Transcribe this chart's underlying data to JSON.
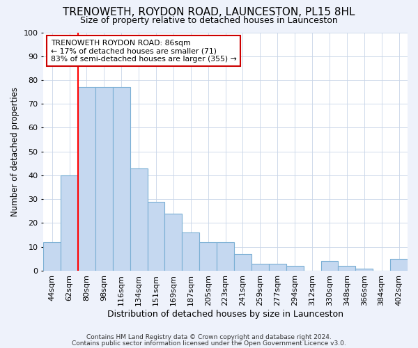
{
  "title": "TRENOWETH, ROYDON ROAD, LAUNCESTON, PL15 8HL",
  "subtitle": "Size of property relative to detached houses in Launceston",
  "xlabel": "Distribution of detached houses by size in Launceston",
  "ylabel": "Number of detached properties",
  "bin_labels": [
    "44sqm",
    "62sqm",
    "80sqm",
    "98sqm",
    "116sqm",
    "134sqm",
    "151sqm",
    "169sqm",
    "187sqm",
    "205sqm",
    "223sqm",
    "241sqm",
    "259sqm",
    "277sqm",
    "294sqm",
    "312sqm",
    "330sqm",
    "348sqm",
    "366sqm",
    "384sqm",
    "402sqm"
  ],
  "bar_heights": [
    12,
    40,
    77,
    77,
    77,
    43,
    29,
    24,
    16,
    12,
    12,
    7,
    3,
    3,
    2,
    0,
    4,
    2,
    1,
    0,
    5
  ],
  "bar_color": "#c5d8f0",
  "bar_edge_color": "#7aafd4",
  "red_line_x": 2,
  "annotation_text": "TRENOWETH ROYDON ROAD: 86sqm\n← 17% of detached houses are smaller (71)\n83% of semi-detached houses are larger (355) →",
  "annotation_box_color": "#ffffff",
  "annotation_box_edge": "#cc0000",
  "footer1": "Contains HM Land Registry data © Crown copyright and database right 2024.",
  "footer2": "Contains public sector information licensed under the Open Government Licence v3.0.",
  "ylim": [
    0,
    100
  ],
  "background_color": "#eef2fb",
  "plot_bg_color": "#ffffff"
}
